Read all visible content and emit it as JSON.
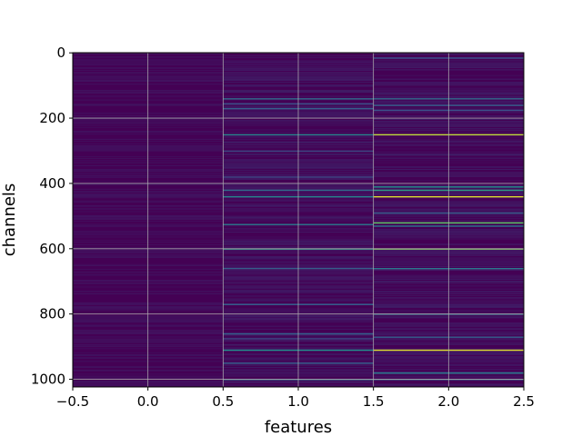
{
  "chart_data": {
    "type": "heatmap",
    "title": "",
    "xlabel": "features",
    "ylabel": "channels",
    "xlim": [
      -0.5,
      2.5
    ],
    "ylim": [
      1023.5,
      -0.5
    ],
    "x_ticks": [
      "−0.5",
      "0.0",
      "0.5",
      "1.0",
      "1.5",
      "2.0",
      "2.5"
    ],
    "x_tick_values": [
      -0.5,
      0.0,
      0.5,
      1.0,
      1.5,
      2.0,
      2.5
    ],
    "y_ticks": [
      "0",
      "200",
      "400",
      "600",
      "800",
      "1000"
    ],
    "y_tick_values": [
      0,
      200,
      400,
      600,
      800,
      1000
    ],
    "grid": true,
    "colormap": "viridis",
    "n_channels": 1024,
    "columns": [
      0,
      1,
      2
    ],
    "background_color": "#440154",
    "highlights": [
      {
        "column": 1,
        "channel": 140,
        "value": 0.35
      },
      {
        "column": 1,
        "channel": 155,
        "value": 0.25
      },
      {
        "column": 1,
        "channel": 170,
        "value": 0.3
      },
      {
        "column": 1,
        "channel": 250,
        "value": 0.45
      },
      {
        "column": 1,
        "channel": 300,
        "value": 0.2
      },
      {
        "column": 1,
        "channel": 380,
        "value": 0.2
      },
      {
        "column": 1,
        "channel": 420,
        "value": 0.35
      },
      {
        "column": 1,
        "channel": 440,
        "value": 0.45
      },
      {
        "column": 1,
        "channel": 525,
        "value": 0.4
      },
      {
        "column": 1,
        "channel": 600,
        "value": 0.55
      },
      {
        "column": 1,
        "channel": 660,
        "value": 0.3
      },
      {
        "column": 1,
        "channel": 770,
        "value": 0.3
      },
      {
        "column": 1,
        "channel": 860,
        "value": 0.3
      },
      {
        "column": 1,
        "channel": 875,
        "value": 0.2
      },
      {
        "column": 1,
        "channel": 910,
        "value": 0.5
      },
      {
        "column": 1,
        "channel": 950,
        "value": 0.3
      },
      {
        "column": 1,
        "channel": 1000,
        "value": 0.35
      },
      {
        "column": 2,
        "channel": 15,
        "value": 0.25
      },
      {
        "column": 2,
        "channel": 140,
        "value": 0.35
      },
      {
        "column": 2,
        "channel": 160,
        "value": 0.3
      },
      {
        "column": 2,
        "channel": 175,
        "value": 0.25
      },
      {
        "column": 2,
        "channel": 250,
        "value": 0.9
      },
      {
        "column": 2,
        "channel": 410,
        "value": 0.5
      },
      {
        "column": 2,
        "channel": 420,
        "value": 0.55
      },
      {
        "column": 2,
        "channel": 440,
        "value": 0.95
      },
      {
        "column": 2,
        "channel": 490,
        "value": 0.3
      },
      {
        "column": 2,
        "channel": 520,
        "value": 0.75
      },
      {
        "column": 2,
        "channel": 530,
        "value": 0.4
      },
      {
        "column": 2,
        "channel": 600,
        "value": 0.8
      },
      {
        "column": 2,
        "channel": 660,
        "value": 0.4
      },
      {
        "column": 2,
        "channel": 800,
        "value": 0.35
      },
      {
        "column": 2,
        "channel": 870,
        "value": 0.3
      },
      {
        "column": 2,
        "channel": 910,
        "value": 0.95
      },
      {
        "column": 2,
        "channel": 980,
        "value": 0.4
      },
      {
        "column": 2,
        "channel": 1000,
        "value": 0.3
      }
    ]
  }
}
